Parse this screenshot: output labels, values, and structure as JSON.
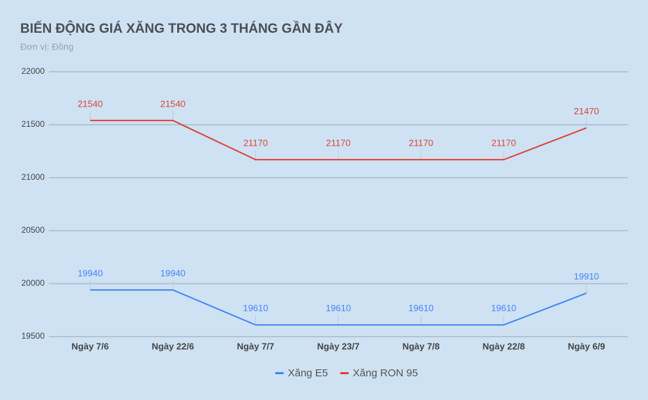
{
  "chart_data": {
    "type": "line",
    "title": "BIẾN ĐỘNG GIÁ XĂNG TRONG 3 THÁNG GẦN ĐÂY",
    "subtitle": "Đơn vị: Đồng",
    "categories": [
      "Ngày 7/6",
      "Ngày 22/6",
      "Ngày 7/7",
      "Ngày 23/7",
      "Ngày 7/8",
      "Ngày 22/8",
      "Ngày 6/9"
    ],
    "series": [
      {
        "name": "Xăng E5",
        "color": "#4285f4",
        "values": [
          19940,
          19940,
          19610,
          19610,
          19610,
          19610,
          19910
        ]
      },
      {
        "name": "Xăng RON 95",
        "color": "#db4437",
        "values": [
          21540,
          21540,
          21170,
          21170,
          21170,
          21170,
          21470
        ]
      }
    ],
    "ylim": [
      19500,
      22000
    ],
    "yticks": [
      19500,
      20000,
      20500,
      21000,
      21500,
      22000
    ],
    "grid": true,
    "legend": "bottom"
  }
}
